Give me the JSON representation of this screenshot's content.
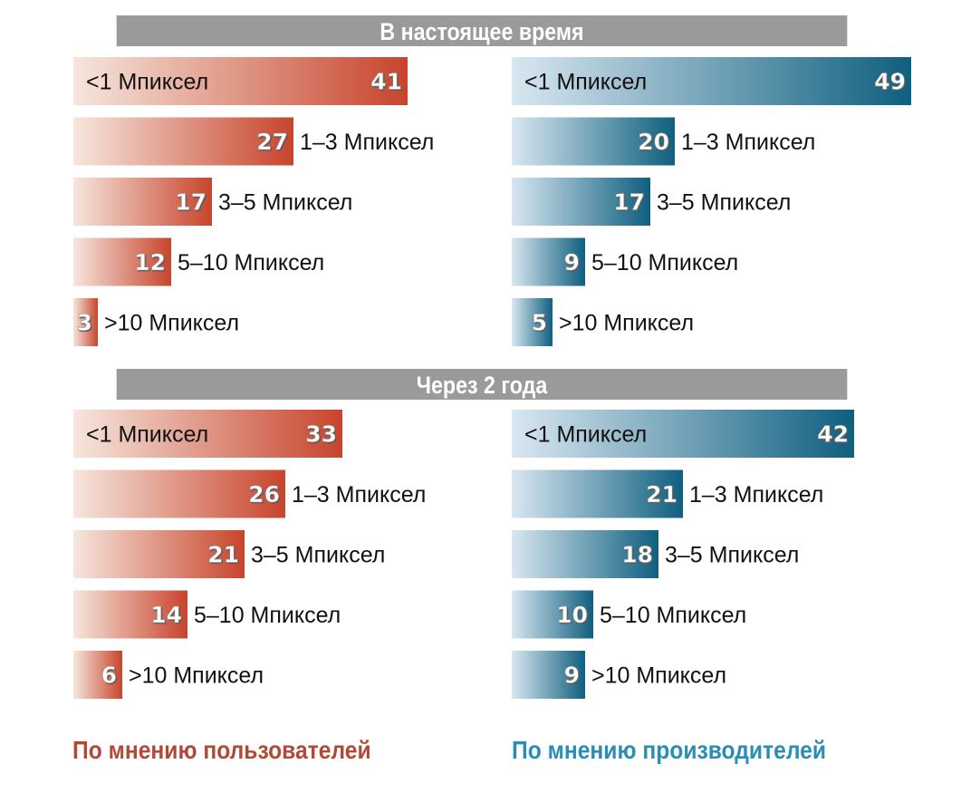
{
  "colors": {
    "users_start": "#f6e6dd",
    "users_end": "#c8442c",
    "makers_start": "#d8e7f1",
    "makers_end": "#0f5f7f",
    "band": "#9a9a9a",
    "footer_users": "#b04a36",
    "footer_makers": "#2a8db3"
  },
  "chart_data": [
    {
      "type": "bar",
      "orientation": "horizontal",
      "title": "В настоящее время",
      "legend": "По мнению пользователей",
      "categories": [
        "<1 Мпиксел",
        "1–3 Мпиксел",
        "3–5 Мпиксел",
        "5–10 Мпиксел",
        ">10 Мпиксел"
      ],
      "values": [
        41,
        27,
        17,
        12,
        3
      ]
    },
    {
      "type": "bar",
      "orientation": "horizontal",
      "title": "В настоящее время",
      "legend": "По мнению производителей",
      "categories": [
        "<1 Мпиксел",
        "1–3 Мпиксел",
        "3–5 Мпиксел",
        "5–10 Мпиксел",
        ">10 Мпиксел"
      ],
      "values": [
        49,
        20,
        17,
        9,
        5
      ]
    },
    {
      "type": "bar",
      "orientation": "horizontal",
      "title": "Через 2 года",
      "legend": "По мнению пользователей",
      "categories": [
        "<1 Мпиксел",
        "1–3 Мпиксел",
        "3–5 Мпиксел",
        "5–10 Мпиксел",
        ">10 Мпиксел"
      ],
      "values": [
        33,
        26,
        21,
        14,
        6
      ]
    },
    {
      "type": "bar",
      "orientation": "horizontal",
      "title": "Через 2 года",
      "legend": "По мнению производителей",
      "categories": [
        "<1 Мпиксел",
        "1–3 Мпиксел",
        "3–5 Мпиксел",
        "5–10 Мпиксел",
        ">10 Мпиксел"
      ],
      "values": [
        42,
        21,
        18,
        10,
        9
      ]
    }
  ],
  "sections": [
    {
      "title": "В настоящее время"
    },
    {
      "title": "Через 2 года"
    }
  ],
  "footer": {
    "users": "По мнению пользователей",
    "makers": "По мнению производителей"
  }
}
